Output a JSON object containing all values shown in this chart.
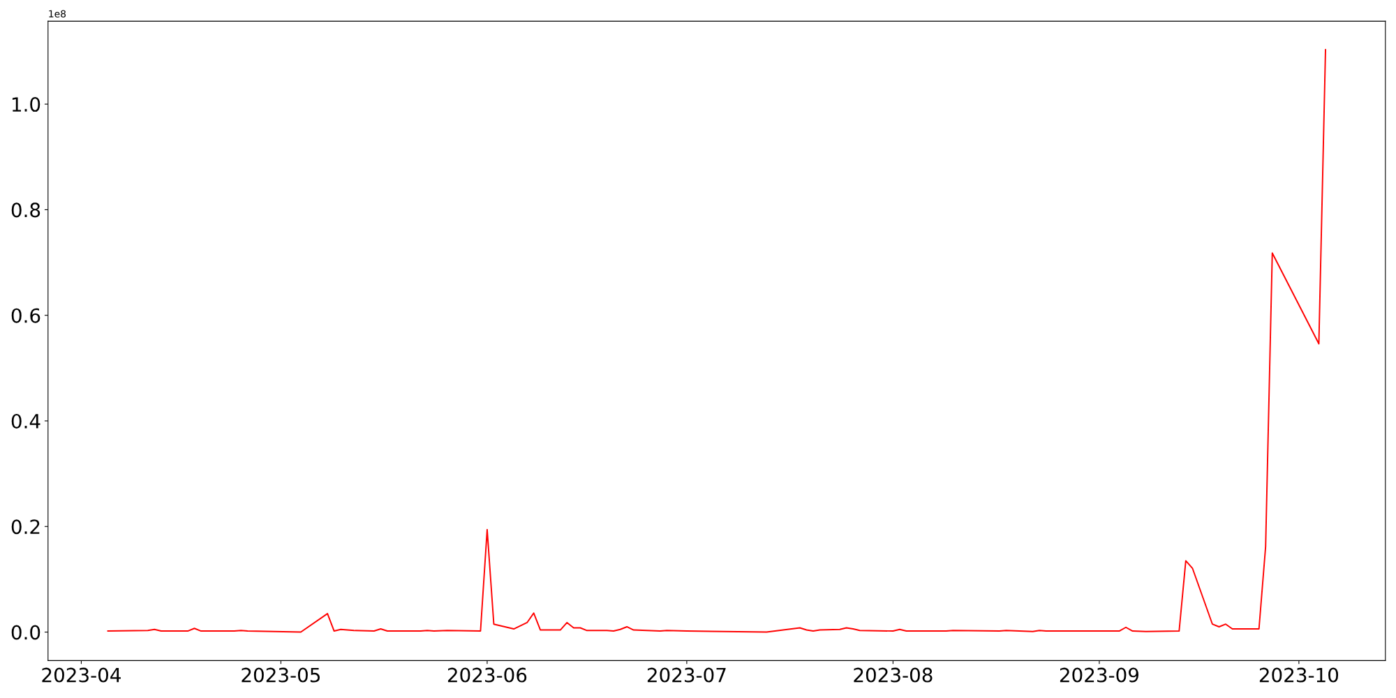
{
  "chart_data": {
    "type": "line",
    "x": [
      "2023-04-05",
      "2023-04-11",
      "2023-04-12",
      "2023-04-13",
      "2023-04-17",
      "2023-04-18",
      "2023-04-19",
      "2023-04-24",
      "2023-04-25",
      "2023-04-26",
      "2023-05-04",
      "2023-05-08",
      "2023-05-09",
      "2023-05-10",
      "2023-05-12",
      "2023-05-15",
      "2023-05-16",
      "2023-05-17",
      "2023-05-22",
      "2023-05-23",
      "2023-05-24",
      "2023-05-26",
      "2023-05-31",
      "2023-06-01",
      "2023-06-02",
      "2023-06-05",
      "2023-06-07",
      "2023-06-08",
      "2023-06-09",
      "2023-06-12",
      "2023-06-13",
      "2023-06-14",
      "2023-06-15",
      "2023-06-16",
      "2023-06-19",
      "2023-06-20",
      "2023-06-21",
      "2023-06-22",
      "2023-06-23",
      "2023-06-27",
      "2023-06-28",
      "2023-07-01",
      "2023-07-13",
      "2023-07-18",
      "2023-07-19",
      "2023-07-20",
      "2023-07-21",
      "2023-07-24",
      "2023-07-25",
      "2023-07-26",
      "2023-07-27",
      "2023-08-01",
      "2023-08-02",
      "2023-08-03",
      "2023-08-09",
      "2023-08-10",
      "2023-08-17",
      "2023-08-18",
      "2023-08-22",
      "2023-08-23",
      "2023-08-24",
      "2023-08-28",
      "2023-09-04",
      "2023-09-05",
      "2023-09-06",
      "2023-09-08",
      "2023-09-13",
      "2023-09-14",
      "2023-09-15",
      "2023-09-18",
      "2023-09-19",
      "2023-09-20",
      "2023-09-21",
      "2023-09-25",
      "2023-09-26",
      "2023-09-27",
      "2023-10-04",
      "2023-10-05"
    ],
    "series": [
      {
        "color": "#ff0000",
        "values": [
          0.002,
          0.003,
          0.005,
          0.002,
          0.002,
          0.007,
          0.002,
          0.002,
          0.003,
          0.002,
          0.0,
          0.035,
          0.002,
          0.005,
          0.003,
          0.002,
          0.006,
          0.002,
          0.002,
          0.003,
          0.002,
          0.003,
          0.002,
          0.194,
          0.015,
          0.006,
          0.018,
          0.036,
          0.004,
          0.004,
          0.018,
          0.008,
          0.008,
          0.003,
          0.003,
          0.002,
          0.005,
          0.01,
          0.004,
          0.002,
          0.003,
          0.002,
          0.0,
          0.008,
          0.004,
          0.002,
          0.004,
          0.005,
          0.008,
          0.006,
          0.003,
          0.002,
          0.005,
          0.002,
          0.002,
          0.003,
          0.002,
          0.003,
          0.001,
          0.003,
          0.002,
          0.002,
          0.002,
          0.009,
          0.002,
          0.001,
          0.002,
          0.135,
          0.121,
          0.015,
          0.01,
          0.015,
          0.006,
          0.006,
          0.162,
          0.718,
          0.546,
          1.103
        ]
      }
    ],
    "xlim": [
      "2023-03-27",
      "2023-10-14"
    ],
    "xticks": [
      {
        "value": "2023-04-01",
        "label": "2023-04"
      },
      {
        "value": "2023-05-01",
        "label": "2023-05"
      },
      {
        "value": "2023-06-01",
        "label": "2023-06"
      },
      {
        "value": "2023-07-01",
        "label": "2023-07"
      },
      {
        "value": "2023-08-01",
        "label": "2023-08"
      },
      {
        "value": "2023-09-01",
        "label": "2023-09"
      },
      {
        "value": "2023-10-01",
        "label": "2023-10"
      }
    ],
    "ylim": [
      -0.054,
      1.157
    ],
    "yticks": [
      {
        "value": 0,
        "label": "0.0"
      },
      {
        "value": 0.2,
        "label": "0.2"
      },
      {
        "value": 0.4,
        "label": "0.4"
      },
      {
        "value": 0.6,
        "label": "0.6"
      },
      {
        "value": 0.8,
        "label": "0.8"
      },
      {
        "value": 1.0,
        "label": "1.0"
      }
    ],
    "annotations": [
      "1e8"
    ],
    "grid": false,
    "marker": "none",
    "line_style": "solid"
  }
}
